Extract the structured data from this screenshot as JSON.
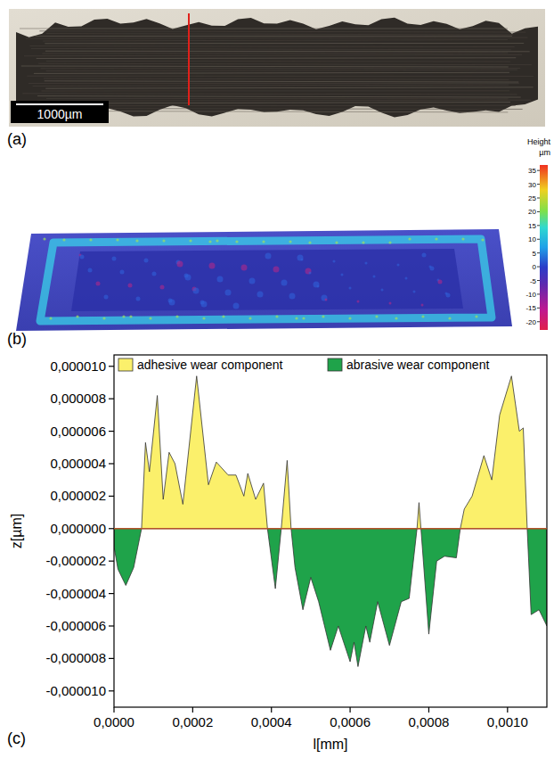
{
  "chart_data": [
    {
      "type": "image",
      "label": "(a)",
      "scale_bar": {
        "label": "1000µm"
      }
    },
    {
      "type": "heatmap",
      "label": "(b)",
      "colorbar": {
        "title": "Height",
        "unit": "µm",
        "range": [
          -23,
          37
        ],
        "ticks": [
          -20,
          -15,
          -10,
          -5,
          0,
          5,
          10,
          15,
          20,
          25,
          30,
          35
        ]
      }
    },
    {
      "type": "area",
      "label": "(c)",
      "x_label": "l[mm]",
      "y_label": "z[µm]",
      "legend": "top",
      "x": [
        0,
        1e-05,
        3e-05,
        5e-05,
        7e-05,
        8e-05,
        9e-05,
        0.00011,
        0.000125,
        0.00014,
        0.000155,
        0.000175,
        0.00021,
        0.00024,
        0.00026,
        0.00029,
        0.00031,
        0.00033,
        0.00034,
        0.00036,
        0.00038,
        0.00039,
        0.00041,
        0.000425,
        0.00044,
        0.00045,
        0.00046,
        0.00048,
        0.0005,
        0.00052,
        0.00055,
        0.00057,
        0.0006,
        0.00061,
        0.00062,
        0.00064,
        0.00065,
        0.00067,
        0.0007,
        0.00073,
        0.00075,
        0.00077,
        0.000775,
        0.00078,
        0.0008,
        0.00082,
        0.00084,
        0.00087,
        0.00088,
        0.00089,
        0.00091,
        0.00094,
        0.00096,
        0.00098,
        0.00101,
        0.00103,
        0.00104,
        0.00105,
        0.00106,
        0.00108,
        0.0011
      ],
      "series": [
        {
          "name": "adhesive wear component",
          "color": "#fbf06b",
          "values": [
            null,
            null,
            null,
            null,
            0,
            5.3e-06,
            3.5e-06,
            8.2e-06,
            1.8e-06,
            4.7e-06,
            4e-06,
            1.5e-06,
            9.4e-06,
            2.7e-06,
            4.1e-06,
            3.3e-06,
            3.3e-06,
            2e-06,
            3.4e-06,
            1.8e-06,
            2.8e-06,
            0,
            null,
            0,
            4.2e-06,
            0,
            null,
            null,
            null,
            null,
            null,
            null,
            null,
            null,
            null,
            null,
            null,
            null,
            null,
            null,
            null,
            0,
            1.6e-06,
            0,
            null,
            null,
            null,
            null,
            0,
            1.2e-06,
            2e-06,
            4.5e-06,
            3e-06,
            7e-06,
            9.4e-06,
            6e-06,
            6.2e-06,
            0,
            null,
            null,
            null
          ]
        },
        {
          "name": "abrasive wear component",
          "color": "#1fa34a",
          "values": [
            -1.1e-06,
            -2.5e-06,
            -3.5e-06,
            -2.4e-06,
            0,
            null,
            null,
            null,
            null,
            null,
            null,
            null,
            null,
            null,
            null,
            null,
            null,
            null,
            null,
            null,
            null,
            0,
            -3.7e-06,
            0,
            null,
            0,
            -2.4e-06,
            -5e-06,
            -3e-06,
            -4.5e-06,
            -7.5e-06,
            -6e-06,
            -8.2e-06,
            -7e-06,
            -8.5e-06,
            -6e-06,
            -7e-06,
            -4.5e-06,
            -7.2e-06,
            -4.5e-06,
            -4.3e-06,
            0,
            null,
            0,
            -6.5e-06,
            -2e-06,
            -1.7e-06,
            -1.8e-06,
            0,
            null,
            null,
            null,
            null,
            null,
            null,
            null,
            null,
            0,
            -5.3e-06,
            -5e-06,
            -6e-06
          ]
        }
      ],
      "xlim": [
        0,
        0.0011
      ],
      "ylim": [
        -1.1e-05,
        1.07e-05
      ],
      "xticks": [
        {
          "value": 0,
          "label": "0,0000"
        },
        {
          "value": 0.0002,
          "label": "0,0002"
        },
        {
          "value": 0.0004,
          "label": "0,0004"
        },
        {
          "value": 0.0006,
          "label": "0,0006"
        },
        {
          "value": 0.0008,
          "label": "0,0008"
        },
        {
          "value": 0.001,
          "label": "0,0010"
        }
      ],
      "yticks": [
        {
          "value": -1e-05,
          "label": "-0,000010"
        },
        {
          "value": -8e-06,
          "label": "-0,000008"
        },
        {
          "value": -6e-06,
          "label": "-0,000006"
        },
        {
          "value": -4e-06,
          "label": "-0,000004"
        },
        {
          "value": -2e-06,
          "label": "-0,000002"
        },
        {
          "value": 0,
          "label": "0,000000"
        },
        {
          "value": 2e-06,
          "label": "0,000002"
        },
        {
          "value": 4e-06,
          "label": "0,000004"
        },
        {
          "value": 6e-06,
          "label": "0,000006"
        },
        {
          "value": 8e-06,
          "label": "0,000008"
        },
        {
          "value": 1e-05,
          "label": "0,000010"
        }
      ]
    }
  ]
}
